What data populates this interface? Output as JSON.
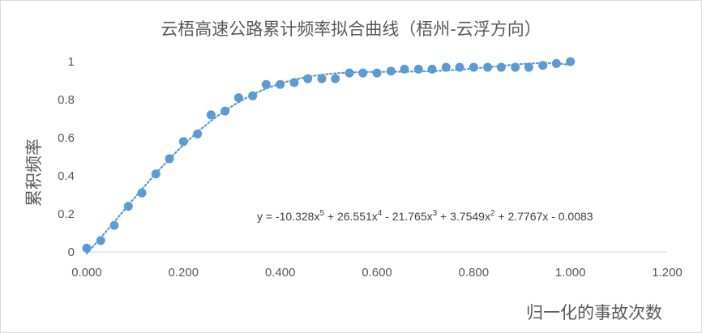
{
  "chart_data": {
    "type": "scatter",
    "title": "云梧高速公路累计频率拟合曲线（梧州-云浮方向）",
    "xlabel": "归一化的事故次数",
    "ylabel": "累积频率",
    "xlim": [
      0,
      1.2
    ],
    "ylim": [
      0,
      1
    ],
    "x_ticks": [
      "0.000",
      "0.200",
      "0.400",
      "0.600",
      "0.800",
      "1.000",
      "1.200"
    ],
    "y_ticks": [
      "0",
      "0.2",
      "0.4",
      "0.6",
      "0.8",
      "1"
    ],
    "grid": false,
    "legend": "none",
    "colors": {
      "marker": "#5b9bd5",
      "trendline": "#5b9bd5",
      "text": "#595959"
    },
    "trendline": {
      "type": "polynomial",
      "order": 5,
      "style": "dotted",
      "coefficients": [
        -10.328,
        26.551,
        -21.765,
        3.7549,
        2.7767,
        -0.0083
      ]
    },
    "equation": {
      "parts": [
        "y = -10.328x",
        "5",
        " + 26.551x",
        "4",
        " - 21.765x",
        "3",
        " + 3.7549x",
        "2",
        " + 2.7767x - 0.0083"
      ]
    },
    "series": [
      {
        "points": [
          [
            0.0,
            0.02
          ],
          [
            0.029,
            0.06
          ],
          [
            0.057,
            0.14
          ],
          [
            0.086,
            0.24
          ],
          [
            0.114,
            0.31
          ],
          [
            0.143,
            0.41
          ],
          [
            0.171,
            0.49
          ],
          [
            0.2,
            0.58
          ],
          [
            0.229,
            0.62
          ],
          [
            0.257,
            0.72
          ],
          [
            0.286,
            0.74
          ],
          [
            0.314,
            0.81
          ],
          [
            0.343,
            0.82
          ],
          [
            0.371,
            0.88
          ],
          [
            0.4,
            0.88
          ],
          [
            0.429,
            0.89
          ],
          [
            0.457,
            0.91
          ],
          [
            0.486,
            0.91
          ],
          [
            0.514,
            0.91
          ],
          [
            0.543,
            0.94
          ],
          [
            0.571,
            0.94
          ],
          [
            0.6,
            0.94
          ],
          [
            0.629,
            0.95
          ],
          [
            0.657,
            0.96
          ],
          [
            0.686,
            0.96
          ],
          [
            0.714,
            0.96
          ],
          [
            0.743,
            0.97
          ],
          [
            0.771,
            0.97
          ],
          [
            0.8,
            0.97
          ],
          [
            0.829,
            0.97
          ],
          [
            0.857,
            0.97
          ],
          [
            0.886,
            0.97
          ],
          [
            0.914,
            0.97
          ],
          [
            0.943,
            0.98
          ],
          [
            0.971,
            0.99
          ],
          [
            1.0,
            1.0
          ]
        ]
      }
    ]
  }
}
